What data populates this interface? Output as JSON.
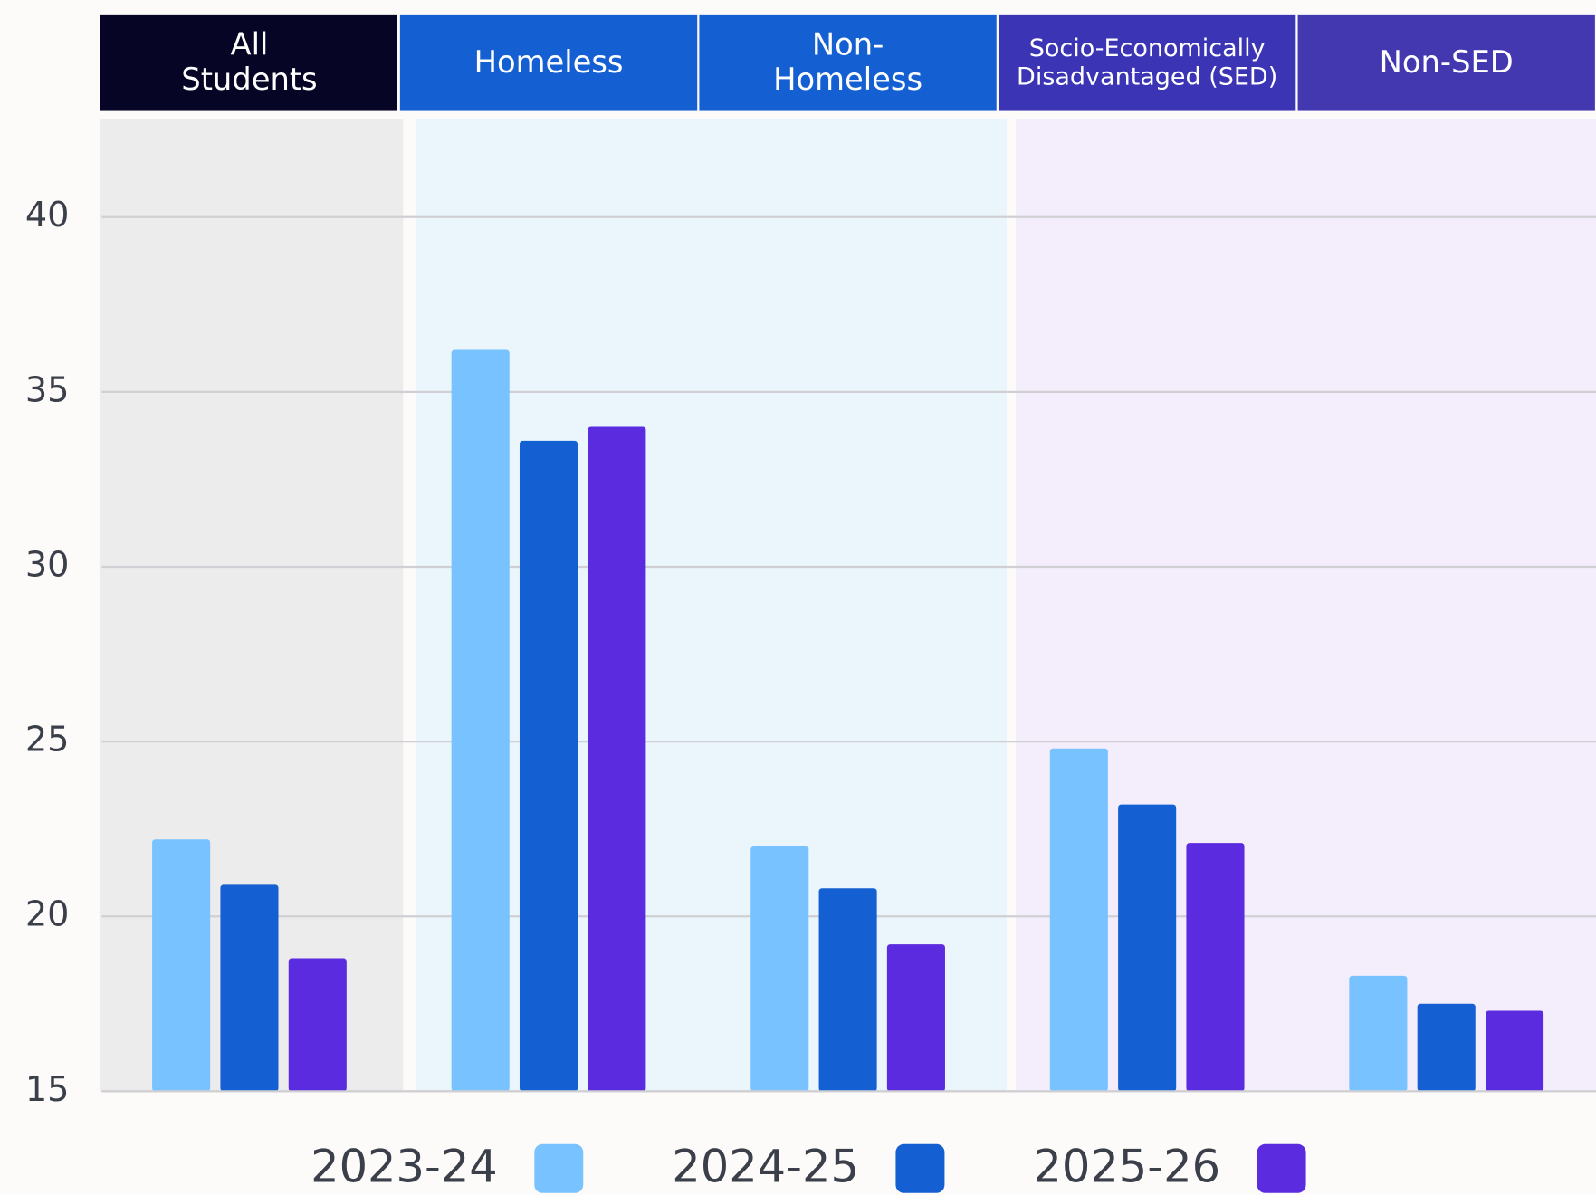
{
  "chart_data": {
    "type": "bar",
    "categories": [
      "All Students",
      "Homeless",
      "Non-Homeless",
      "Socio-Economically Disadvantaged (SED)",
      "Non-SED"
    ],
    "series": [
      {
        "name": "2023-24",
        "color": "#78c2ff",
        "values": [
          22.2,
          36.2,
          22.0,
          24.8,
          18.3
        ]
      },
      {
        "name": "2024-25",
        "color": "#1460d2",
        "values": [
          20.9,
          33.6,
          20.8,
          23.2,
          17.5
        ]
      },
      {
        "name": "2025-26",
        "color": "#5b2bdf",
        "values": [
          18.8,
          34.0,
          19.2,
          22.1,
          17.3
        ]
      }
    ],
    "ylim": [
      15,
      42.8
    ],
    "yticks": [
      15,
      20,
      25,
      30,
      35,
      40
    ],
    "grid": true
  }
}
